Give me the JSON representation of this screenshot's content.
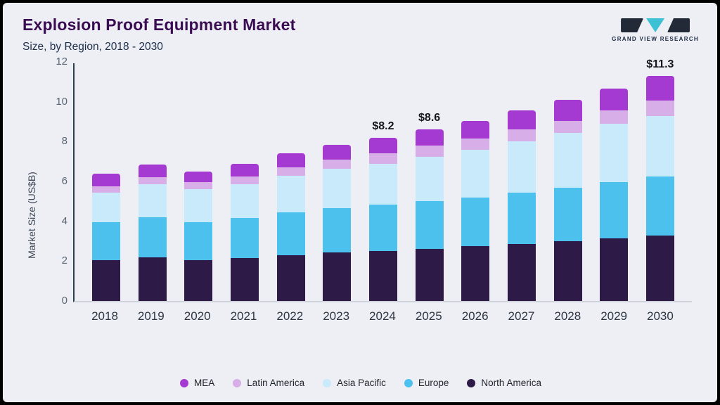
{
  "header": {
    "logo_text": "GRAND VIEW RESEARCH"
  },
  "chart_data": {
    "type": "bar",
    "stacked": true,
    "title": "Explosion Proof Equipment Market",
    "subtitle": "Size, by Region, 2018 - 2030",
    "ylabel": "Market Size (US$B)",
    "ylim": [
      0,
      12
    ],
    "yticks": [
      0,
      2,
      4,
      6,
      8,
      10,
      12
    ],
    "grid": false,
    "legend_position": "bottom",
    "categories": [
      "2018",
      "2019",
      "2020",
      "2021",
      "2022",
      "2023",
      "2024",
      "2025",
      "2026",
      "2027",
      "2028",
      "2029",
      "2030"
    ],
    "series": [
      {
        "name": "North America",
        "color": "#2e1a47",
        "values": [
          2.05,
          2.2,
          2.05,
          2.15,
          2.3,
          2.45,
          2.5,
          2.6,
          2.75,
          2.85,
          3.0,
          3.15,
          3.3
        ]
      },
      {
        "name": "Europe",
        "color": "#4cc1ee",
        "values": [
          1.9,
          2.0,
          1.9,
          2.0,
          2.15,
          2.2,
          2.35,
          2.4,
          2.45,
          2.6,
          2.7,
          2.8,
          2.95
        ]
      },
      {
        "name": "Asia Pacific",
        "color": "#c9eafa",
        "values": [
          1.5,
          1.65,
          1.65,
          1.7,
          1.85,
          2.0,
          2.05,
          2.25,
          2.4,
          2.55,
          2.75,
          2.95,
          3.05
        ]
      },
      {
        "name": "Latin America",
        "color": "#d7aee8",
        "values": [
          0.3,
          0.35,
          0.35,
          0.4,
          0.4,
          0.45,
          0.5,
          0.55,
          0.55,
          0.6,
          0.6,
          0.65,
          0.75
        ]
      },
      {
        "name": "MEA",
        "color": "#a43ad2",
        "values": [
          0.65,
          0.65,
          0.55,
          0.65,
          0.7,
          0.75,
          0.8,
          0.8,
          0.9,
          0.95,
          1.05,
          1.1,
          1.25
        ]
      }
    ],
    "totals": [
      6.4,
      6.85,
      6.5,
      6.9,
      7.4,
      7.85,
      8.2,
      8.6,
      9.05,
      9.55,
      10.1,
      10.65,
      11.3
    ],
    "bar_labels": [
      "",
      "",
      "",
      "",
      "",
      "",
      "$8.2",
      "$8.6",
      "",
      "",
      "",
      "",
      "$11.3"
    ],
    "legend_order": [
      "MEA",
      "Latin America",
      "Asia Pacific",
      "Europe",
      "North America"
    ]
  }
}
